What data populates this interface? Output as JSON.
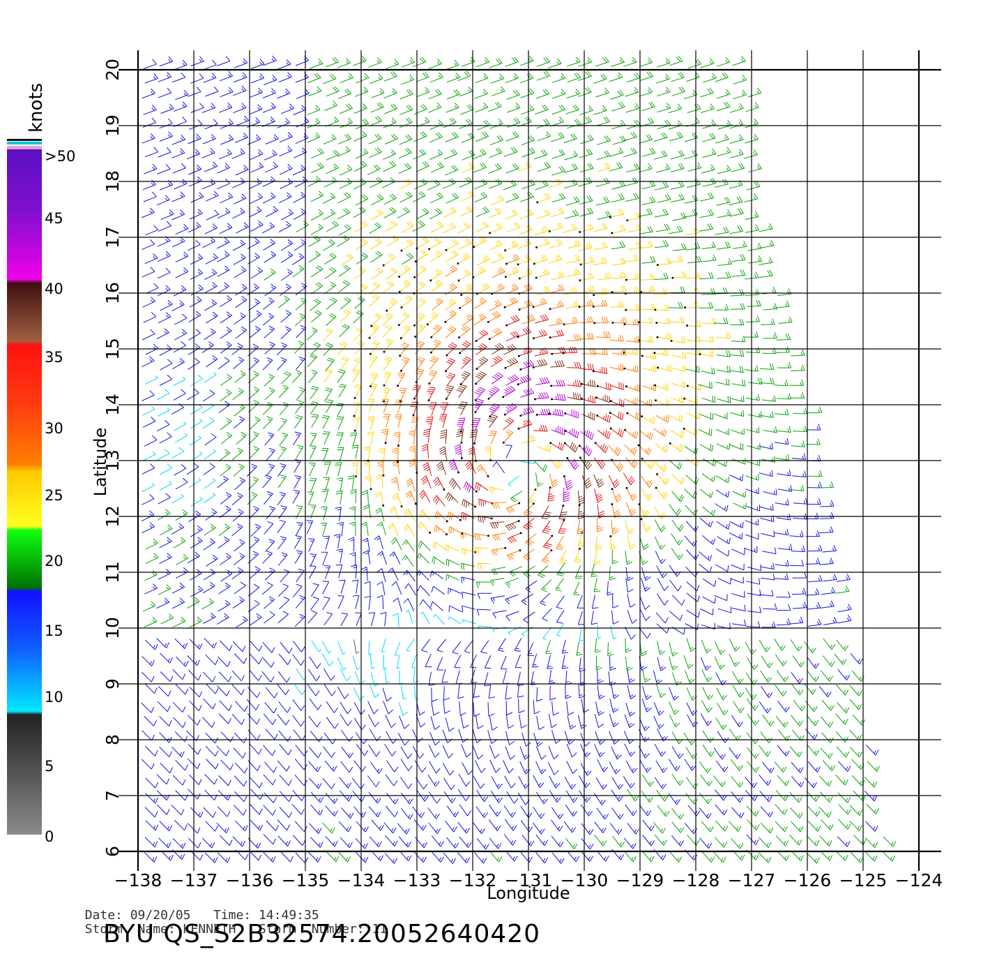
{
  "header": {
    "date_label": "Date:",
    "date": "09/20/05",
    "time_label": "Time:",
    "time": "14:49:35",
    "storm_name_label": "Storm  Name:",
    "storm_name": "KENNETH",
    "storm_number_label": "Storm  Number:",
    "storm_number": "11",
    "product_id": "BYU  QS_S2B32574.20052640420"
  },
  "map": {
    "xlabel": "Longitude",
    "ylabel": "Latitude",
    "lon_ticks": [
      "−138",
      "−137",
      "−136",
      "−135",
      "−134",
      "−133",
      "−132",
      "−131",
      "−130",
      "−129",
      "−128",
      "−127",
      "−126",
      "−125",
      "−124"
    ],
    "lat_ticks": [
      "6",
      "7",
      "8",
      "9",
      "10",
      "11",
      "12",
      "13",
      "14",
      "15",
      "16",
      "17",
      "18",
      "19",
      "20"
    ],
    "lon_range": [
      -138,
      -124
    ],
    "lat_range": [
      6,
      20
    ],
    "grid": true,
    "storm_center": {
      "lon": -131.2,
      "lat": 13.0
    },
    "wind_colors": {
      "calm": "#555555",
      "light": "#00d8ff",
      "moderate": "#1010e0",
      "fresh": "#0aa00a",
      "strong": "#ffd200",
      "gale": "#ff7a00",
      "storm": "#e01010",
      "severe": "#7a2a10",
      "extreme": "#b000d0"
    }
  },
  "legend": {
    "units": "knots",
    "labels": [
      ">50",
      "45",
      "40",
      "35",
      "30",
      "25",
      "20",
      "15",
      "10",
      "5",
      "0"
    ],
    "top_bands": [
      "#111111",
      "#00c8d8",
      "#e8a0c8"
    ]
  }
}
